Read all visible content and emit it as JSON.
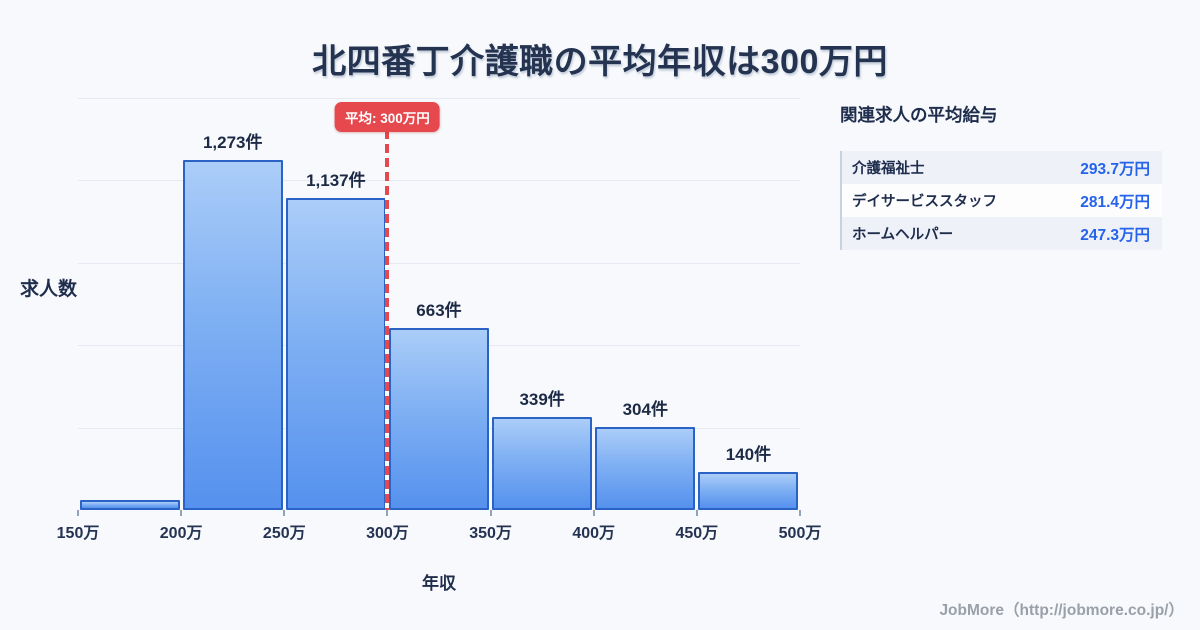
{
  "title": "北四番丁介護職の平均年収は300万円",
  "chart_data": {
    "type": "bar",
    "title": "北四番丁介護職の平均年収は300万円",
    "xlabel": "年収",
    "ylabel": "求人数",
    "bin_edge_labels": [
      "150万",
      "200万",
      "250万",
      "300万",
      "350万",
      "400万",
      "450万",
      "500万"
    ],
    "values": [
      37,
      1273,
      1137,
      663,
      339,
      304,
      140
    ],
    "bar_labels": [
      "",
      "1,273件",
      "1,137件",
      "663件",
      "339件",
      "304件",
      "140件"
    ],
    "ylim": [
      0,
      1500
    ],
    "gridline_step": 300,
    "grid": "on",
    "average_line": {
      "label": "平均: 300万円",
      "tick_index": 3,
      "x_label": "300万",
      "color": "#e5484d"
    },
    "bar_fill_top": "#abcdf8",
    "bar_fill_bottom": "#5591ee",
    "bar_border_color": "#2a62c5"
  },
  "side_panel": {
    "title": "関連求人の平均給与",
    "rows": [
      {
        "label": "介護福祉士",
        "value": "293.7万円"
      },
      {
        "label": "デイサービススタッフ",
        "value": "281.4万円"
      },
      {
        "label": "ホームヘルパー",
        "value": "247.3万円"
      }
    ],
    "value_color": "#2563eb"
  },
  "footer": {
    "credit": "JobMore（http://jobmore.co.jp/）"
  }
}
